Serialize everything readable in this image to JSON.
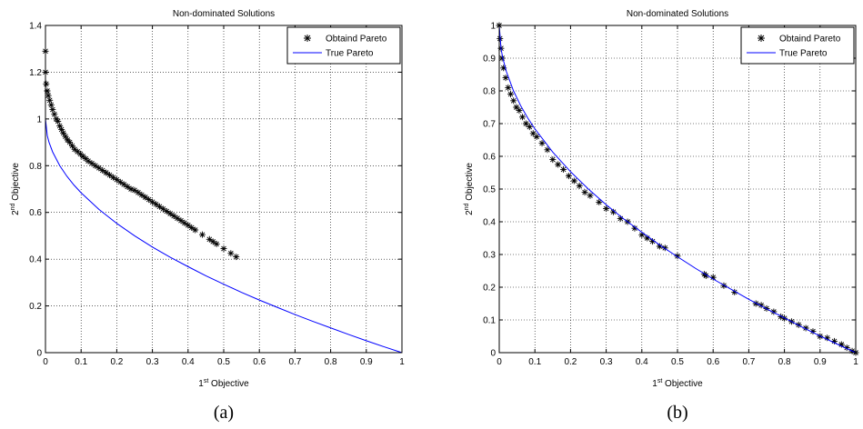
{
  "charts": [
    {
      "caption": "(a)",
      "chart_data": {
        "type": "line",
        "title": "Non-dominated Solutions",
        "xlabel": {
          "sup": "st",
          "pre": "1",
          "post": " Objective"
        },
        "ylabel": {
          "sup": "nd",
          "pre": "2",
          "post": " Objective"
        },
        "xlim": [
          0,
          1
        ],
        "ylim": [
          0,
          1.4
        ],
        "xticks": [
          0,
          0.1,
          0.2,
          0.3,
          0.4,
          0.5,
          0.6,
          0.7,
          0.8,
          0.9,
          1
        ],
        "yticks": [
          0,
          0.2,
          0.4,
          0.6,
          0.8,
          1,
          1.2,
          1.4
        ],
        "grid": true,
        "legend_position": "top-right",
        "series": [
          {
            "name": "Obtaind Pareto",
            "kind": "scatter",
            "marker": "*",
            "color": "#000000",
            "x": [
              0,
              0,
              0.002,
              0.005,
              0.008,
              0.012,
              0.016,
              0.02,
              0.025,
              0.03,
              0.035,
              0.04,
              0.045,
              0.05,
              0.056,
              0.062,
              0.068,
              0.075,
              0.082,
              0.09,
              0.098,
              0.105,
              0.113,
              0.12,
              0.13,
              0.14,
              0.15,
              0.16,
              0.17,
              0.18,
              0.19,
              0.2,
              0.21,
              0.22,
              0.23,
              0.24,
              0.25,
              0.26,
              0.27,
              0.28,
              0.29,
              0.3,
              0.31,
              0.32,
              0.33,
              0.34,
              0.35,
              0.36,
              0.37,
              0.38,
              0.39,
              0.4,
              0.41,
              0.42,
              0.44,
              0.46,
              0.47,
              0.48,
              0.5,
              0.52,
              0.535
            ],
            "y": [
              1.29,
              1.2,
              1.15,
              1.12,
              1.1,
              1.08,
              1.06,
              1.04,
              1.02,
              1.0,
              0.99,
              0.97,
              0.955,
              0.94,
              0.925,
              0.91,
              0.9,
              0.885,
              0.87,
              0.86,
              0.85,
              0.84,
              0.83,
              0.82,
              0.81,
              0.8,
              0.79,
              0.78,
              0.77,
              0.76,
              0.75,
              0.74,
              0.73,
              0.72,
              0.71,
              0.7,
              0.695,
              0.685,
              0.675,
              0.665,
              0.655,
              0.645,
              0.635,
              0.625,
              0.615,
              0.605,
              0.595,
              0.585,
              0.575,
              0.565,
              0.555,
              0.545,
              0.535,
              0.525,
              0.505,
              0.485,
              0.475,
              0.465,
              0.445,
              0.425,
              0.41
            ]
          },
          {
            "name": "True Pareto",
            "kind": "line",
            "color": "#0000ff",
            "x": [
              0,
              0.005,
              0.01,
              0.02,
              0.04,
              0.06,
              0.08,
              0.1,
              0.15,
              0.2,
              0.25,
              0.3,
              0.35,
              0.4,
              0.45,
              0.5,
              0.55,
              0.6,
              0.65,
              0.7,
              0.75,
              0.8,
              0.85,
              0.9,
              0.95,
              1
            ],
            "y": [
              1.0,
              0.929,
              0.9,
              0.859,
              0.8,
              0.755,
              0.717,
              0.684,
              0.613,
              0.553,
              0.5,
              0.452,
              0.408,
              0.368,
              0.329,
              0.293,
              0.258,
              0.225,
              0.194,
              0.163,
              0.134,
              0.106,
              0.078,
              0.051,
              0.025,
              0
            ]
          }
        ]
      }
    },
    {
      "caption": "(b)",
      "chart_data": {
        "type": "line",
        "title": "Non-dominated Solutions",
        "xlabel": {
          "sup": "st",
          "pre": "1",
          "post": " Objective"
        },
        "ylabel": {
          "sup": "nd",
          "pre": "2",
          "post": " Objective"
        },
        "xlim": [
          0,
          1
        ],
        "ylim": [
          0,
          1
        ],
        "xticks": [
          0,
          0.1,
          0.2,
          0.3,
          0.4,
          0.5,
          0.6,
          0.7,
          0.8,
          0.9,
          1
        ],
        "yticks": [
          0,
          0.1,
          0.2,
          0.3,
          0.4,
          0.5,
          0.6,
          0.7,
          0.8,
          0.9,
          1
        ],
        "grid": true,
        "legend_position": "top-right",
        "series": [
          {
            "name": "Obtaind Pareto",
            "kind": "scatter",
            "marker": "*",
            "color": "#000000",
            "x": [
              0,
              0.002,
              0.005,
              0.008,
              0.012,
              0.018,
              0.025,
              0.032,
              0.04,
              0.048,
              0.056,
              0.065,
              0.075,
              0.085,
              0.095,
              0.105,
              0.12,
              0.135,
              0.15,
              0.165,
              0.18,
              0.195,
              0.21,
              0.225,
              0.24,
              0.255,
              0.28,
              0.3,
              0.32,
              0.34,
              0.36,
              0.38,
              0.4,
              0.415,
              0.43,
              0.45,
              0.465,
              0.5,
              0.575,
              0.58,
              0.6,
              0.63,
              0.66,
              0.72,
              0.735,
              0.75,
              0.77,
              0.79,
              0.8,
              0.82,
              0.84,
              0.86,
              0.88,
              0.9,
              0.92,
              0.94,
              0.96,
              0.975,
              0.99,
              1.0
            ],
            "y": [
              1.0,
              0.96,
              0.93,
              0.9,
              0.87,
              0.84,
              0.81,
              0.79,
              0.77,
              0.75,
              0.74,
              0.72,
              0.7,
              0.69,
              0.67,
              0.66,
              0.64,
              0.62,
              0.59,
              0.575,
              0.56,
              0.54,
              0.525,
              0.51,
              0.49,
              0.48,
              0.46,
              0.44,
              0.43,
              0.41,
              0.4,
              0.38,
              0.36,
              0.35,
              0.34,
              0.325,
              0.32,
              0.295,
              0.24,
              0.235,
              0.23,
              0.205,
              0.185,
              0.15,
              0.145,
              0.135,
              0.125,
              0.11,
              0.105,
              0.095,
              0.085,
              0.075,
              0.065,
              0.05,
              0.045,
              0.035,
              0.025,
              0.015,
              0.005,
              0
            ]
          },
          {
            "name": "True Pareto",
            "kind": "line",
            "color": "#0000ff",
            "x": [
              0,
              0.005,
              0.01,
              0.02,
              0.04,
              0.06,
              0.08,
              0.1,
              0.15,
              0.2,
              0.25,
              0.3,
              0.35,
              0.4,
              0.45,
              0.5,
              0.55,
              0.6,
              0.65,
              0.7,
              0.75,
              0.8,
              0.85,
              0.9,
              0.95,
              1
            ],
            "y": [
              1.0,
              0.929,
              0.9,
              0.859,
              0.8,
              0.755,
              0.717,
              0.684,
              0.613,
              0.553,
              0.5,
              0.452,
              0.408,
              0.368,
              0.329,
              0.293,
              0.258,
              0.225,
              0.194,
              0.163,
              0.134,
              0.106,
              0.078,
              0.051,
              0.025,
              0
            ]
          }
        ]
      }
    }
  ]
}
